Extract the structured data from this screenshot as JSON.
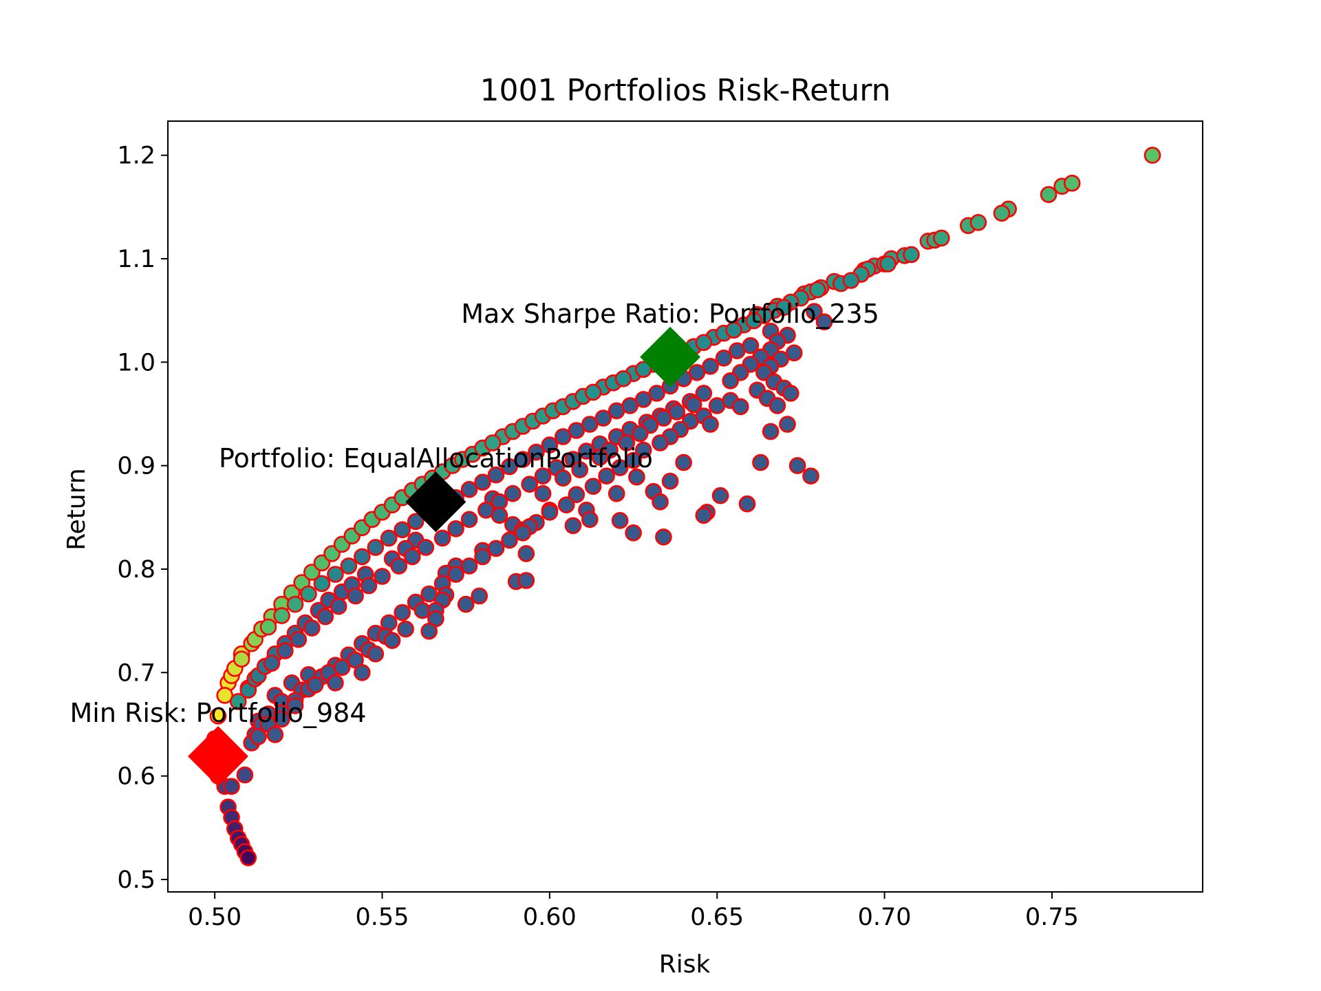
{
  "chart_data": {
    "type": "scatter",
    "title": "1001 Portfolios Risk-Return",
    "xlabel": "Risk",
    "ylabel": "Return",
    "xlim": [
      0.486,
      0.795
    ],
    "ylim": [
      0.488,
      1.233
    ],
    "xticks": [
      0.5,
      0.55,
      0.6,
      0.65,
      0.7,
      0.75
    ],
    "xtick_labels": [
      "0.50",
      "0.55",
      "0.60",
      "0.65",
      "0.70",
      "0.75"
    ],
    "yticks": [
      0.5,
      0.6,
      0.7,
      0.8,
      0.9,
      1.0,
      1.1,
      1.2
    ],
    "ytick_labels": [
      "0.5",
      "0.6",
      "0.7",
      "0.8",
      "0.9",
      "1.0",
      "1.1",
      "1.2"
    ],
    "grid": false,
    "marker_edge_color": "#ff0000",
    "colormap": "viridis (colored by Sharpe ratio)",
    "points": [
      [
        0.78,
        1.2
      ],
      [
        0.756,
        1.173
      ],
      [
        0.753,
        1.17
      ],
      [
        0.749,
        1.162
      ],
      [
        0.737,
        1.148
      ],
      [
        0.735,
        1.144
      ],
      [
        0.728,
        1.135
      ],
      [
        0.725,
        1.132
      ],
      [
        0.717,
        1.12
      ],
      [
        0.715,
        1.118
      ],
      [
        0.713,
        1.117
      ],
      [
        0.708,
        1.104
      ],
      [
        0.706,
        1.103
      ],
      [
        0.702,
        1.1
      ],
      [
        0.701,
        1.095
      ],
      [
        0.697,
        1.093
      ],
      [
        0.695,
        1.09
      ],
      [
        0.693,
        1.085
      ],
      [
        0.69,
        1.079
      ],
      [
        0.687,
        1.076
      ],
      [
        0.685,
        1.078
      ],
      [
        0.681,
        1.072
      ],
      [
        0.678,
        1.068
      ],
      [
        0.675,
        1.062
      ],
      [
        0.672,
        1.058
      ],
      [
        0.67,
        1.053
      ],
      [
        0.667,
        1.05
      ],
      [
        0.664,
        1.045
      ],
      [
        0.661,
        1.04
      ],
      [
        0.658,
        1.036
      ],
      [
        0.655,
        1.031
      ],
      [
        0.652,
        1.028
      ],
      [
        0.649,
        1.024
      ],
      [
        0.646,
        1.019
      ],
      [
        0.643,
        1.015
      ],
      [
        0.64,
        1.01
      ],
      [
        0.637,
        1.006
      ],
      [
        0.634,
        1.002
      ],
      [
        0.631,
        0.998
      ],
      [
        0.628,
        0.993
      ],
      [
        0.625,
        0.989
      ],
      [
        0.622,
        0.984
      ],
      [
        0.619,
        0.98
      ],
      [
        0.616,
        0.976
      ],
      [
        0.613,
        0.971
      ],
      [
        0.61,
        0.967
      ],
      [
        0.607,
        0.962
      ],
      [
        0.604,
        0.957
      ],
      [
        0.601,
        0.953
      ],
      [
        0.598,
        0.948
      ],
      [
        0.595,
        0.943
      ],
      [
        0.592,
        0.938
      ],
      [
        0.589,
        0.933
      ],
      [
        0.586,
        0.928
      ],
      [
        0.583,
        0.922
      ],
      [
        0.58,
        0.917
      ],
      [
        0.577,
        0.911
      ],
      [
        0.574,
        0.906
      ],
      [
        0.571,
        0.9
      ],
      [
        0.568,
        0.894
      ],
      [
        0.565,
        0.888
      ],
      [
        0.562,
        0.882
      ],
      [
        0.559,
        0.876
      ],
      [
        0.556,
        0.869
      ],
      [
        0.553,
        0.862
      ],
      [
        0.55,
        0.855
      ],
      [
        0.547,
        0.848
      ],
      [
        0.544,
        0.84
      ],
      [
        0.541,
        0.832
      ],
      [
        0.538,
        0.824
      ],
      [
        0.535,
        0.815
      ],
      [
        0.532,
        0.806
      ],
      [
        0.529,
        0.797
      ],
      [
        0.526,
        0.787
      ],
      [
        0.523,
        0.777
      ],
      [
        0.52,
        0.766
      ],
      [
        0.517,
        0.754
      ],
      [
        0.514,
        0.742
      ],
      [
        0.511,
        0.728
      ],
      [
        0.508,
        0.713
      ],
      [
        0.505,
        0.697
      ],
      [
        0.503,
        0.678
      ],
      [
        0.501,
        0.658
      ],
      [
        0.5,
        0.636
      ],
      [
        0.5,
        0.612
      ],
      [
        0.501,
        0.6
      ],
      [
        0.503,
        0.59
      ],
      [
        0.504,
        0.57
      ],
      [
        0.505,
        0.56
      ],
      [
        0.506,
        0.549
      ],
      [
        0.507,
        0.54
      ],
      [
        0.508,
        0.534
      ],
      [
        0.509,
        0.527
      ],
      [
        0.51,
        0.521
      ],
      [
        0.7,
        1.095
      ],
      [
        0.694,
        1.089
      ],
      [
        0.68,
        1.07
      ],
      [
        0.676,
        1.066
      ],
      [
        0.668,
        1.054
      ],
      [
        0.662,
        1.046
      ],
      [
        0.682,
        1.039
      ],
      [
        0.679,
        1.049
      ],
      [
        0.671,
        1.026
      ],
      [
        0.668,
        1.02
      ],
      [
        0.673,
        1.009
      ],
      [
        0.666,
        1.03
      ],
      [
        0.66,
        1.016
      ],
      [
        0.656,
        1.011
      ],
      [
        0.652,
        1.004
      ],
      [
        0.648,
        0.996
      ],
      [
        0.644,
        0.99
      ],
      [
        0.64,
        0.984
      ],
      [
        0.636,
        0.977
      ],
      [
        0.632,
        0.97
      ],
      [
        0.628,
        0.964
      ],
      [
        0.624,
        0.958
      ],
      [
        0.62,
        0.953
      ],
      [
        0.616,
        0.946
      ],
      [
        0.612,
        0.94
      ],
      [
        0.608,
        0.934
      ],
      [
        0.604,
        0.928
      ],
      [
        0.6,
        0.92
      ],
      [
        0.596,
        0.913
      ],
      [
        0.592,
        0.906
      ],
      [
        0.588,
        0.899
      ],
      [
        0.584,
        0.891
      ],
      [
        0.58,
        0.884
      ],
      [
        0.576,
        0.877
      ],
      [
        0.572,
        0.869
      ],
      [
        0.568,
        0.862
      ],
      [
        0.564,
        0.854
      ],
      [
        0.56,
        0.846
      ],
      [
        0.556,
        0.838
      ],
      [
        0.552,
        0.83
      ],
      [
        0.548,
        0.821
      ],
      [
        0.544,
        0.812
      ],
      [
        0.54,
        0.803
      ],
      [
        0.536,
        0.795
      ],
      [
        0.532,
        0.786
      ],
      [
        0.528,
        0.776
      ],
      [
        0.524,
        0.766
      ],
      [
        0.52,
        0.755
      ],
      [
        0.516,
        0.744
      ],
      [
        0.512,
        0.732
      ],
      [
        0.508,
        0.718
      ],
      [
        0.506,
        0.704
      ],
      [
        0.504,
        0.69
      ],
      [
        0.646,
        0.97
      ],
      [
        0.642,
        0.962
      ],
      [
        0.637,
        0.955
      ],
      [
        0.633,
        0.948
      ],
      [
        0.629,
        0.942
      ],
      [
        0.624,
        0.935
      ],
      [
        0.62,
        0.928
      ],
      [
        0.615,
        0.921
      ],
      [
        0.611,
        0.914
      ],
      [
        0.607,
        0.906
      ],
      [
        0.602,
        0.898
      ],
      [
        0.598,
        0.89
      ],
      [
        0.594,
        0.882
      ],
      [
        0.589,
        0.873
      ],
      [
        0.585,
        0.865
      ],
      [
        0.581,
        0.857
      ],
      [
        0.576,
        0.848
      ],
      [
        0.572,
        0.839
      ],
      [
        0.568,
        0.83
      ],
      [
        0.563,
        0.821
      ],
      [
        0.559,
        0.812
      ],
      [
        0.555,
        0.803
      ],
      [
        0.55,
        0.793
      ],
      [
        0.546,
        0.784
      ],
      [
        0.542,
        0.774
      ],
      [
        0.537,
        0.764
      ],
      [
        0.533,
        0.754
      ],
      [
        0.529,
        0.743
      ],
      [
        0.525,
        0.732
      ],
      [
        0.521,
        0.721
      ],
      [
        0.517,
        0.709
      ],
      [
        0.513,
        0.697
      ],
      [
        0.51,
        0.685
      ],
      [
        0.507,
        0.672
      ],
      [
        0.669,
        1.003
      ],
      [
        0.666,
        0.996
      ],
      [
        0.664,
        0.99
      ],
      [
        0.667,
        0.981
      ],
      [
        0.662,
        0.973
      ],
      [
        0.665,
        0.965
      ],
      [
        0.67,
        0.975
      ],
      [
        0.672,
        0.97
      ],
      [
        0.668,
        0.958
      ],
      [
        0.657,
        0.957
      ],
      [
        0.654,
        0.963
      ],
      [
        0.65,
        0.958
      ],
      [
        0.646,
        0.948
      ],
      [
        0.648,
        0.94
      ],
      [
        0.642,
        0.943
      ],
      [
        0.639,
        0.935
      ],
      [
        0.636,
        0.928
      ],
      [
        0.633,
        0.922
      ],
      [
        0.628,
        0.915
      ],
      [
        0.625,
        0.905
      ],
      [
        0.621,
        0.898
      ],
      [
        0.617,
        0.89
      ],
      [
        0.613,
        0.88
      ],
      [
        0.608,
        0.872
      ],
      [
        0.605,
        0.862
      ],
      [
        0.6,
        0.855
      ],
      [
        0.596,
        0.845
      ],
      [
        0.592,
        0.838
      ],
      [
        0.588,
        0.828
      ],
      [
        0.584,
        0.82
      ],
      [
        0.58,
        0.812
      ],
      [
        0.576,
        0.803
      ],
      [
        0.572,
        0.795
      ],
      [
        0.568,
        0.786
      ],
      [
        0.564,
        0.776
      ],
      [
        0.56,
        0.768
      ],
      [
        0.556,
        0.758
      ],
      [
        0.552,
        0.748
      ],
      [
        0.548,
        0.738
      ],
      [
        0.544,
        0.728
      ],
      [
        0.54,
        0.717
      ],
      [
        0.536,
        0.707
      ],
      [
        0.532,
        0.696
      ],
      [
        0.528,
        0.684
      ],
      [
        0.524,
        0.673
      ],
      [
        0.52,
        0.661
      ],
      [
        0.516,
        0.65
      ],
      [
        0.513,
        0.638
      ],
      [
        0.671,
        0.94
      ],
      [
        0.666,
        0.933
      ],
      [
        0.663,
        0.903
      ],
      [
        0.674,
        0.9
      ],
      [
        0.678,
        0.89
      ],
      [
        0.659,
        0.863
      ],
      [
        0.651,
        0.871
      ],
      [
        0.647,
        0.855
      ],
      [
        0.646,
        0.852
      ],
      [
        0.64,
        0.903
      ],
      [
        0.636,
        0.885
      ],
      [
        0.633,
        0.865
      ],
      [
        0.631,
        0.875
      ],
      [
        0.634,
        0.831
      ],
      [
        0.625,
        0.835
      ],
      [
        0.621,
        0.847
      ],
      [
        0.626,
        0.889
      ],
      [
        0.62,
        0.873
      ],
      [
        0.611,
        0.857
      ],
      [
        0.612,
        0.848
      ],
      [
        0.607,
        0.842
      ],
      [
        0.6,
        0.857
      ],
      [
        0.598,
        0.873
      ],
      [
        0.594,
        0.841
      ],
      [
        0.593,
        0.815
      ],
      [
        0.592,
        0.835
      ],
      [
        0.593,
        0.789
      ],
      [
        0.59,
        0.788
      ],
      [
        0.58,
        0.818
      ],
      [
        0.579,
        0.774
      ],
      [
        0.575,
        0.766
      ],
      [
        0.572,
        0.803
      ],
      [
        0.569,
        0.775
      ],
      [
        0.568,
        0.77
      ],
      [
        0.569,
        0.796
      ],
      [
        0.566,
        0.752
      ],
      [
        0.564,
        0.74
      ],
      [
        0.566,
        0.76
      ],
      [
        0.562,
        0.76
      ],
      [
        0.56,
        0.768
      ],
      [
        0.557,
        0.742
      ],
      [
        0.553,
        0.731
      ],
      [
        0.551,
        0.735
      ],
      [
        0.548,
        0.718
      ],
      [
        0.546,
        0.722
      ],
      [
        0.544,
        0.7
      ],
      [
        0.542,
        0.712
      ],
      [
        0.538,
        0.705
      ],
      [
        0.536,
        0.69
      ],
      [
        0.534,
        0.7
      ],
      [
        0.53,
        0.688
      ],
      [
        0.528,
        0.698
      ],
      [
        0.526,
        0.683
      ],
      [
        0.523,
        0.69
      ],
      [
        0.52,
        0.672
      ],
      [
        0.518,
        0.678
      ],
      [
        0.516,
        0.66
      ],
      [
        0.514,
        0.65
      ],
      [
        0.512,
        0.64
      ],
      [
        0.511,
        0.632
      ],
      [
        0.518,
        0.64
      ],
      [
        0.52,
        0.655
      ],
      [
        0.524,
        0.668
      ],
      [
        0.509,
        0.601
      ],
      [
        0.505,
        0.59
      ],
      [
        0.513,
        0.653
      ],
      [
        0.557,
        0.82
      ],
      [
        0.553,
        0.81
      ],
      [
        0.56,
        0.828
      ],
      [
        0.545,
        0.795
      ],
      [
        0.541,
        0.785
      ],
      [
        0.538,
        0.778
      ],
      [
        0.534,
        0.77
      ],
      [
        0.531,
        0.76
      ],
      [
        0.527,
        0.748
      ],
      [
        0.524,
        0.738
      ],
      [
        0.521,
        0.728
      ],
      [
        0.518,
        0.718
      ],
      [
        0.515,
        0.706
      ],
      [
        0.512,
        0.694
      ],
      [
        0.51,
        0.683
      ],
      [
        0.585,
        0.852
      ],
      [
        0.589,
        0.843
      ],
      [
        0.583,
        0.868
      ],
      [
        0.604,
        0.888
      ],
      [
        0.609,
        0.896
      ],
      [
        0.615,
        0.908
      ],
      [
        0.618,
        0.915
      ],
      [
        0.623,
        0.922
      ],
      [
        0.627,
        0.931
      ],
      [
        0.63,
        0.939
      ],
      [
        0.634,
        0.946
      ],
      [
        0.638,
        0.952
      ],
      [
        0.643,
        0.959
      ],
      [
        0.654,
        0.982
      ],
      [
        0.657,
        0.99
      ],
      [
        0.66,
        0.998
      ],
      [
        0.663,
        1.005
      ],
      [
        0.666,
        1.012
      ]
    ],
    "highlights": [
      {
        "label": "Max Sharpe Ratio: Portfolio_235",
        "x": 0.636,
        "y": 1.005,
        "color": "#008000",
        "marker": "diamond"
      },
      {
        "label": "Portfolio: EqualAllocationPortfolio",
        "x": 0.566,
        "y": 0.865,
        "color": "#000000",
        "marker": "diamond"
      },
      {
        "label": "Min Risk: Portfolio_984",
        "x": 0.501,
        "y": 0.619,
        "color": "#ff0000",
        "marker": "diamond"
      }
    ]
  }
}
